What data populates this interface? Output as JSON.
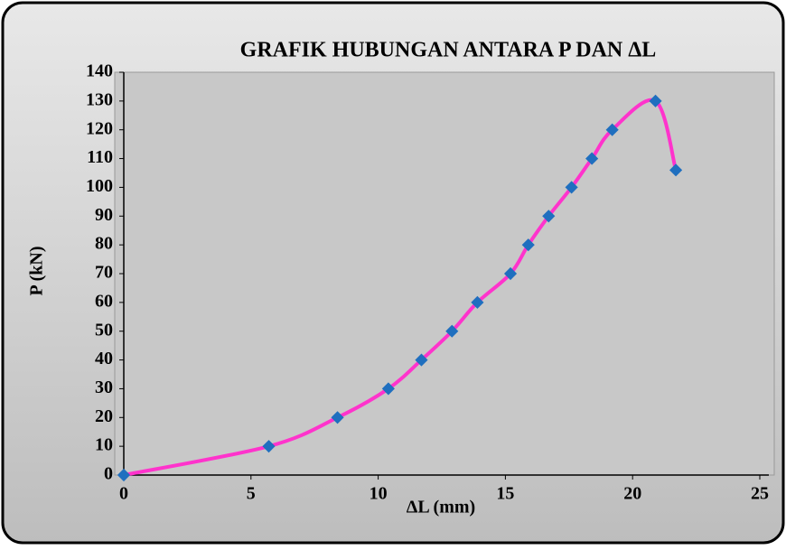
{
  "chart_data": {
    "type": "scatter",
    "title": "GRAFIK HUBUNGAN ANTARA P DAN ΔL",
    "x_label": "ΔL (mm)",
    "y_label": "P (kN)",
    "series": [
      {
        "name": "P",
        "line_color": "#ff33cc",
        "marker_color": "#1f6fbf",
        "x": [
          0,
          5.7,
          8.4,
          10.4,
          11.7,
          12.9,
          13.9,
          15.2,
          15.9,
          16.7,
          17.6,
          18.4,
          19.2,
          20.9,
          21.7
        ],
        "values": [
          0,
          10,
          20,
          30,
          40,
          50,
          60,
          70,
          80,
          90,
          100,
          110,
          120,
          130,
          106
        ]
      }
    ],
    "xlim": [
      0,
      25
    ],
    "xticks": [
      0,
      5,
      10,
      15,
      20,
      25
    ],
    "ylim": [
      0,
      140
    ],
    "yticks": [
      0,
      10,
      20,
      30,
      40,
      50,
      60,
      70,
      80,
      90,
      100,
      110,
      120,
      130,
      140
    ],
    "smooth": true
  }
}
